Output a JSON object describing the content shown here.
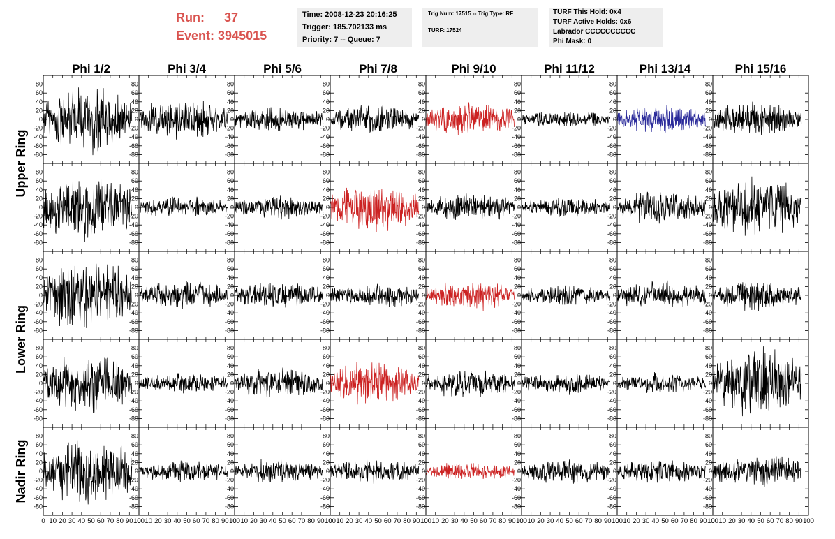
{
  "header": {
    "run_label": "Run:",
    "run_value": "37",
    "event_label": "Event:",
    "event_value": "3945015",
    "time": "Time: 2008-12-23 20:16:25",
    "trigger": "Trigger: 185.702133 ms",
    "priority": "Priority: 7 -- Queue: 7",
    "trig_num": "Trig Num: 17515 -- Trig Type: RF",
    "turf": "TURF: 17524",
    "turf_this_hold": "TURF This Hold: 0x4",
    "turf_active_holds": "TURF Active Holds: 0x6",
    "labrador": "Labrador CCCCCCCCCC",
    "phi_mask": "Phi Mask: 0"
  },
  "chart_data": {
    "type": "line",
    "columns": [
      "Phi 1/2",
      "Phi 3/4",
      "Phi 5/6",
      "Phi 7/8",
      "Phi 9/10",
      "Phi 11/12",
      "Phi 13/14",
      "Phi 15/16"
    ],
    "rows": [
      "Upper Ring",
      "Upper Ring",
      "Lower Ring",
      "Lower Ring",
      "Nadir Ring"
    ],
    "row_labels": [
      {
        "text": "Upper Ring",
        "spans_rows": [
          0,
          1
        ]
      },
      {
        "text": "Lower Ring",
        "spans_rows": [
          2,
          3
        ]
      },
      {
        "text": "Nadir Ring",
        "spans_rows": [
          4,
          4
        ]
      }
    ],
    "xlim": [
      0,
      100
    ],
    "ylim": [
      -100,
      100
    ],
    "y_ticks": [
      -80,
      -60,
      -40,
      -20,
      0,
      20,
      40,
      60,
      80
    ],
    "x_ticks": [
      0,
      10,
      20,
      30,
      40,
      50,
      60,
      70,
      80,
      90,
      100
    ],
    "grid": false,
    "colors": {
      "default": "#000000",
      "red": "#cc2222",
      "blue": "#2a2a9a"
    },
    "waveforms": [
      [
        {
          "amp": 60,
          "color": "default"
        },
        {
          "amp": 35,
          "color": "default"
        },
        {
          "amp": 22,
          "color": "default"
        },
        {
          "amp": 25,
          "color": "default"
        },
        {
          "amp": 28,
          "color": "red"
        },
        {
          "amp": 15,
          "color": "default"
        },
        {
          "amp": 25,
          "color": "blue"
        },
        {
          "amp": 30,
          "color": "default"
        }
      ],
      [
        {
          "amp": 60,
          "color": "default"
        },
        {
          "amp": 18,
          "color": "default"
        },
        {
          "amp": 20,
          "color": "default"
        },
        {
          "amp": 40,
          "color": "red"
        },
        {
          "amp": 25,
          "color": "default"
        },
        {
          "amp": 18,
          "color": "default"
        },
        {
          "amp": 28,
          "color": "default"
        },
        {
          "amp": 50,
          "color": "default"
        }
      ],
      [
        {
          "amp": 60,
          "color": "default"
        },
        {
          "amp": 25,
          "color": "default"
        },
        {
          "amp": 22,
          "color": "default"
        },
        {
          "amp": 22,
          "color": "default"
        },
        {
          "amp": 25,
          "color": "red"
        },
        {
          "amp": 18,
          "color": "default"
        },
        {
          "amp": 25,
          "color": "default"
        },
        {
          "amp": 25,
          "color": "default"
        }
      ],
      [
        {
          "amp": 50,
          "color": "default"
        },
        {
          "amp": 18,
          "color": "default"
        },
        {
          "amp": 25,
          "color": "default"
        },
        {
          "amp": 38,
          "color": "red"
        },
        {
          "amp": 25,
          "color": "default"
        },
        {
          "amp": 18,
          "color": "default"
        },
        {
          "amp": 18,
          "color": "default"
        },
        {
          "amp": 60,
          "color": "default"
        }
      ],
      [
        {
          "amp": 60,
          "color": "default"
        },
        {
          "amp": 20,
          "color": "default"
        },
        {
          "amp": 20,
          "color": "default"
        },
        {
          "amp": 20,
          "color": "default"
        },
        {
          "amp": 15,
          "color": "red"
        },
        {
          "amp": 22,
          "color": "default"
        },
        {
          "amp": 20,
          "color": "default"
        },
        {
          "amp": 30,
          "color": "default"
        }
      ]
    ]
  }
}
